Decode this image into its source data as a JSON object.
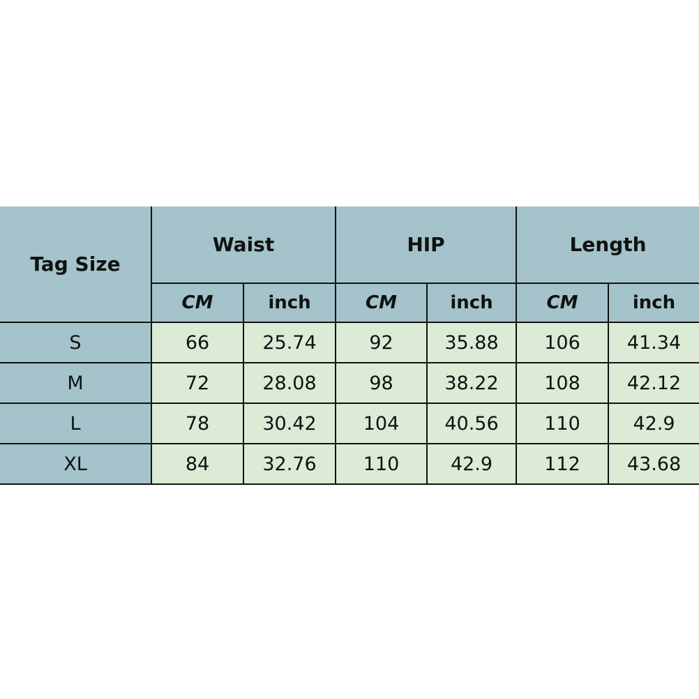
{
  "table": {
    "tag_size_header": "Tag Size",
    "groups": [
      "Waist",
      "HIP",
      "Length"
    ],
    "units": [
      "CM",
      "inch"
    ],
    "rows": [
      {
        "size": "S",
        "values": [
          "66",
          "25.74",
          "92",
          "35.88",
          "106",
          "41.34"
        ]
      },
      {
        "size": "M",
        "values": [
          "72",
          "28.08",
          "98",
          "38.22",
          "108",
          "42.12"
        ]
      },
      {
        "size": "L",
        "values": [
          "78",
          "30.42",
          "104",
          "40.56",
          "110",
          "42.9"
        ]
      },
      {
        "size": "XL",
        "values": [
          "84",
          "32.76",
          "110",
          "42.9",
          "112",
          "43.68"
        ]
      }
    ]
  },
  "colors": {
    "header_bg": "#a4c3ca",
    "data_bg": "#dcebd6",
    "border": "#111111"
  }
}
